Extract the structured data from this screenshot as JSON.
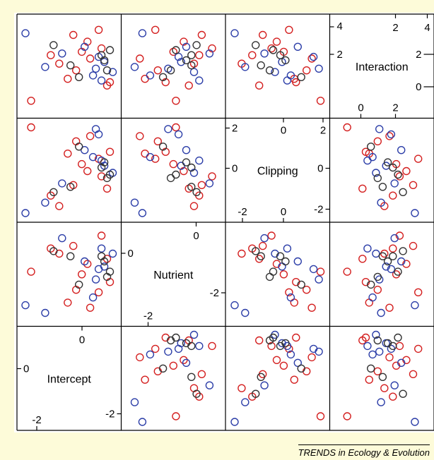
{
  "chart_data": {
    "type": "scatter",
    "variables": [
      "Intercept",
      "Nutrient",
      "Clipping",
      "Interaction"
    ],
    "diagonal_labels": [
      "Interaction",
      "Clipping",
      "Nutrient",
      "Intercept"
    ],
    "ranges": {
      "Intercept": [
        -2.6,
        0.7
      ],
      "Nutrient": [
        -3.1,
        0.5
      ],
      "Clipping": [
        -2.8,
        2.5
      ],
      "Interaction": [
        -1.0,
        4.5
      ]
    },
    "axis_ticks": {
      "Interaction": {
        "top": [
          "2",
          "4"
        ],
        "right": [
          "2",
          "4"
        ],
        "bottom": [
          "0",
          "2"
        ],
        "left": [
          "4",
          "2"
        ],
        "right_inner": [
          "2",
          "0"
        ]
      },
      "Clipping": {
        "left": [
          "2",
          "0"
        ],
        "right": [
          "2",
          "0",
          "-2"
        ],
        "bottom": [
          "-2",
          "0"
        ],
        "top": [
          "0",
          "2"
        ]
      },
      "Nutrient": {
        "top": [
          "0"
        ],
        "left": [
          "0"
        ],
        "right": [
          "-2"
        ],
        "bottom": [
          "-2"
        ]
      },
      "Intercept": {
        "top": [
          "0"
        ],
        "left": [
          "0"
        ],
        "bottom": [
          "-2"
        ],
        "right": [
          "-2"
        ]
      }
    },
    "series_colors": {
      "red": "#d42020",
      "blue": "#2c3ea8",
      "black": "#333333"
    },
    "points": [
      {
        "g": "red",
        "Intercept": -2.3,
        "Nutrient": -1.2,
        "Clipping": 2.3,
        "Interaction": -0.3
      },
      {
        "g": "red",
        "Intercept": -1.0,
        "Nutrient": -2.4,
        "Clipping": 0.8,
        "Interaction": 1.0
      },
      {
        "g": "red",
        "Intercept": -0.7,
        "Nutrient": -1.9,
        "Clipping": 1.5,
        "Interaction": 1.5
      },
      {
        "g": "red",
        "Intercept": -0.2,
        "Nutrient": -2.6,
        "Clipping": 1.8,
        "Interaction": 2.2
      },
      {
        "g": "red",
        "Intercept": 0.2,
        "Nutrient": 0.2,
        "Clipping": -0.5,
        "Interaction": 2.8
      },
      {
        "g": "red",
        "Intercept": -0.8,
        "Nutrient": -0.2,
        "Clipping": -1.0,
        "Interaction": 3.6
      },
      {
        "g": "red",
        "Intercept": -0.3,
        "Nutrient": -0.9,
        "Clipping": -0.2,
        "Interaction": 3.2
      },
      {
        "g": "red",
        "Intercept": 0.5,
        "Nutrient": -1.6,
        "Clipping": 0.9,
        "Interaction": 0.8
      },
      {
        "g": "red",
        "Intercept": -1.3,
        "Nutrient": -0.5,
        "Clipping": -2.2,
        "Interaction": 1.9
      },
      {
        "g": "red",
        "Intercept": -1.6,
        "Nutrient": -0.3,
        "Clipping": -1.6,
        "Interaction": 2.4
      },
      {
        "g": "red",
        "Intercept": 0.1,
        "Nutrient": -2.0,
        "Clipping": 0.5,
        "Interaction": 3.9
      },
      {
        "g": "red",
        "Intercept": 0.4,
        "Nutrient": -0.7,
        "Clipping": -1.2,
        "Interaction": 0.6
      },
      {
        "g": "red",
        "Intercept": -0.5,
        "Nutrient": -1.3,
        "Clipping": 0.2,
        "Interaction": 2.6
      },
      {
        "g": "blue",
        "Intercept": 0.6,
        "Nutrient": -0.5,
        "Clipping": -0.3,
        "Interaction": 1.4
      },
      {
        "g": "blue",
        "Intercept": 0.3,
        "Nutrient": -1.0,
        "Clipping": 0.1,
        "Interaction": 2.0
      },
      {
        "g": "blue",
        "Intercept": -0.1,
        "Nutrient": -2.2,
        "Clipping": 0.6,
        "Interaction": 1.2
      },
      {
        "g": "blue",
        "Intercept": -1.2,
        "Nutrient": 0.1,
        "Clipping": -0.9,
        "Interaction": 2.5
      },
      {
        "g": "blue",
        "Intercept": -2.5,
        "Nutrient": -2.5,
        "Clipping": -2.6,
        "Interaction": 3.7
      },
      {
        "g": "blue",
        "Intercept": 0.0,
        "Nutrient": -1.5,
        "Clipping": 2.2,
        "Interaction": 1.6
      },
      {
        "g": "blue",
        "Intercept": -0.4,
        "Nutrient": -0.8,
        "Clipping": 1.0,
        "Interaction": 2.9
      },
      {
        "g": "blue",
        "Intercept": -1.8,
        "Nutrient": -2.8,
        "Clipping": -2.0,
        "Interaction": 1.7
      },
      {
        "g": "blue",
        "Intercept": 0.2,
        "Nutrient": -0.3,
        "Clipping": 0.4,
        "Interaction": 0.9
      },
      {
        "g": "blue",
        "Intercept": 0.1,
        "Nutrient": -1.1,
        "Clipping": 1.9,
        "Interaction": 2.3
      },
      {
        "g": "black",
        "Intercept": -0.9,
        "Nutrient": -0.6,
        "Clipping": -1.1,
        "Interaction": 1.8
      },
      {
        "g": "black",
        "Intercept": 0.5,
        "Nutrient": -1.2,
        "Clipping": -0.4,
        "Interaction": 2.7
      },
      {
        "g": "black",
        "Intercept": 0.3,
        "Nutrient": -0.8,
        "Clipping": 0.3,
        "Interaction": 2.1
      },
      {
        "g": "black",
        "Intercept": -0.6,
        "Nutrient": -1.7,
        "Clipping": 1.2,
        "Interaction": 1.1
      },
      {
        "g": "black",
        "Intercept": -1.5,
        "Nutrient": -0.4,
        "Clipping": -1.4,
        "Interaction": 3.0
      },
      {
        "g": "black",
        "Intercept": 0.4,
        "Nutrient": -1.4,
        "Clipping": -0.6,
        "Interaction": 1.5
      },
      {
        "g": "black",
        "Intercept": 0.2,
        "Nutrient": -0.6,
        "Clipping": 0.0,
        "Interaction": 2.4
      }
    ]
  },
  "credit": "TRENDS in Ecology & Evolution"
}
